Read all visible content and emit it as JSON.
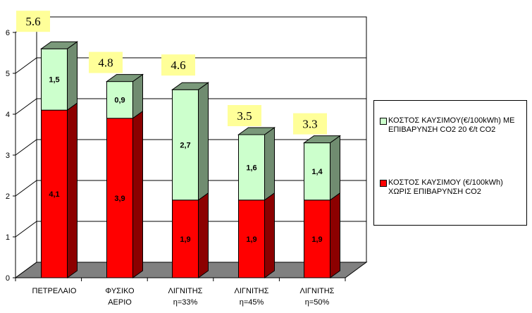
{
  "chart_data": {
    "type": "bar",
    "stacked": true,
    "categories": [
      [
        "ΠΕΤΡΕΛΑΙΟ"
      ],
      [
        "ΦΥΣΙΚΟ",
        "ΑΕΡΙΟ"
      ],
      [
        "ΛΙΓΝΙΤΗΣ",
        "η=33%"
      ],
      [
        "ΛΙΓΝΙΤΗΣ",
        "η=45%"
      ],
      [
        "ΛΙΓΝΙΤΗΣ",
        "η=50%"
      ]
    ],
    "series": [
      {
        "name": "ΚΟΣΤΟΣ ΚΑΥΣΙΜΟΥ (€/100kWh) ΧΩΡΙΣ ΕΠΙΒΑΡΥΝΣΗ CO2",
        "values": [
          4.1,
          3.9,
          1.9,
          1.9,
          1.9
        ],
        "labels": [
          "4,1",
          "3,9",
          "1,9",
          "1,9",
          "1,9"
        ],
        "color": "#ff0000"
      },
      {
        "name": "ΚΟΣΤΟΣ ΚΑΥΣΙΜΟΥ(€/100kWh) ΜΕ ΕΠΙΒΑΡΥΝΣΗ CO2 20 €/t CO2",
        "values": [
          1.5,
          0.9,
          2.7,
          1.6,
          1.4
        ],
        "labels": [
          "1,5",
          "0,9",
          "2,7",
          "1,6",
          "1,4"
        ],
        "color": "#ccffcc"
      }
    ],
    "totals": [
      "5.6",
      "4.8",
      "4.6",
      "3.5",
      "3.3"
    ],
    "ylim": [
      0,
      6
    ],
    "yticks": [
      "0",
      "1",
      "2",
      "3",
      "4",
      "5",
      "6"
    ],
    "grid": true,
    "legend_position": "right",
    "legend_order": [
      1,
      0
    ]
  }
}
